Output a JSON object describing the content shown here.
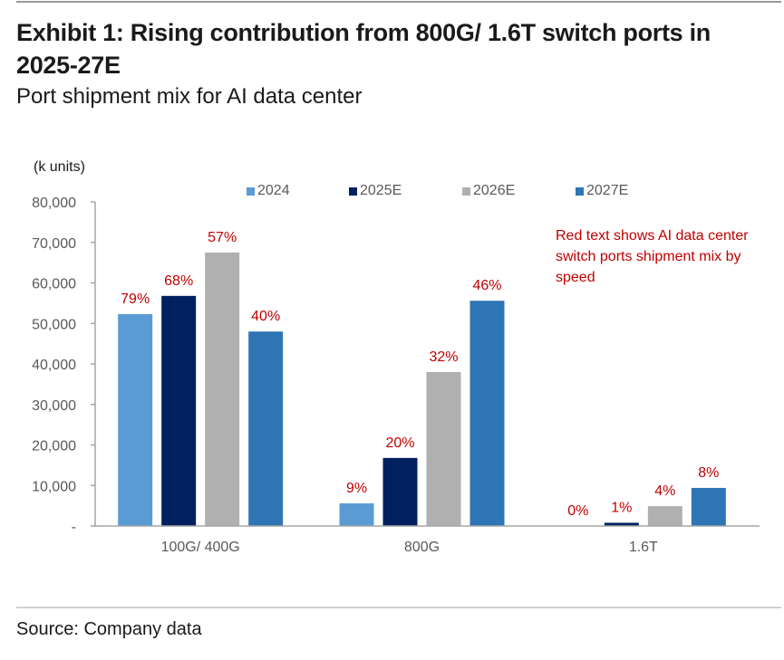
{
  "header": {
    "title": "Exhibit 1: Rising contribution from 800G/ 1.6T switch ports in 2025-27E",
    "subtitle": "Port shipment mix for AI data center"
  },
  "footer": {
    "source": "Source: Company data"
  },
  "annotation": "Red text shows AI data center switch ports shipment mix by speed",
  "chart_data": {
    "type": "bar",
    "title": "Port shipment mix for AI data center",
    "ylabel": "(k units)",
    "xlabel": "",
    "ylim": [
      0,
      80000
    ],
    "yticks": [
      0,
      10000,
      20000,
      30000,
      40000,
      50000,
      60000,
      70000,
      80000
    ],
    "ytick_labels": [
      "-",
      "10,000",
      "20,000",
      "30,000",
      "40,000",
      "50,000",
      "60,000",
      "70,000",
      "80,000"
    ],
    "grid": false,
    "legend_position": "top",
    "categories": [
      "100G/ 400G",
      "800G",
      "1.6T"
    ],
    "series": [
      {
        "name": "2024",
        "color": "#5B9BD5",
        "values": [
          52300,
          5600,
          0
        ],
        "labels": [
          "79%",
          "9%",
          "0%"
        ]
      },
      {
        "name": "2025E",
        "color": "#002060",
        "values": [
          56800,
          16800,
          800
        ],
        "labels": [
          "68%",
          "20%",
          "1%"
        ]
      },
      {
        "name": "2026E",
        "color": "#B0B0B0",
        "values": [
          67500,
          38000,
          4900
        ],
        "labels": [
          "57%",
          "32%",
          "4%"
        ]
      },
      {
        "name": "2027E",
        "color": "#2E75B6",
        "values": [
          48000,
          55600,
          9400
        ],
        "labels": [
          "40%",
          "46%",
          "8%"
        ]
      }
    ],
    "data_label_color": "#C00000",
    "data_label_meaning": "AI data center switch ports shipment mix by speed"
  }
}
